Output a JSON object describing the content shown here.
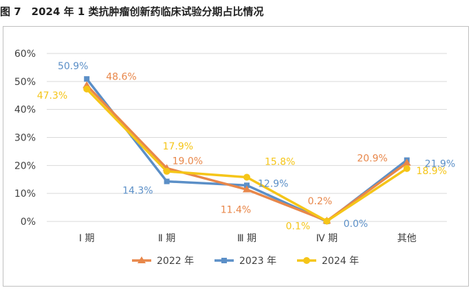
{
  "figure_title": "图 7　2024 年 1 类抗肿瘤创新药临床试验分期占比情况",
  "colors": {
    "2022": "#E8874A",
    "2023": "#5B8FC7",
    "2024": "#F5C518",
    "grid": "#d9d9d9",
    "axis_text": "#404040"
  },
  "chart_data": {
    "type": "line",
    "title": "",
    "xlabel": "",
    "ylabel": "",
    "categories": [
      "Ⅰ 期",
      "Ⅱ 期",
      "Ⅲ 期",
      "Ⅳ 期",
      "其他"
    ],
    "ylim": [
      0,
      60
    ],
    "y_ticks": [
      "0%",
      "10%",
      "20%",
      "30%",
      "40%",
      "50%",
      "60%"
    ],
    "grid": true,
    "legend_position": "bottom",
    "series": [
      {
        "name": "2022 年",
        "marker": "triangle",
        "values": [
          48.6,
          19.0,
          11.4,
          0.2,
          20.9
        ],
        "labels": [
          "48.6%",
          "19.0%",
          "11.4%",
          "0.2%",
          "20.9%"
        ]
      },
      {
        "name": "2023 年",
        "marker": "square",
        "values": [
          50.9,
          14.3,
          12.9,
          0.0,
          21.9
        ],
        "labels": [
          "50.9%",
          "14.3%",
          "12.9%",
          "0.0%",
          "21.9%"
        ]
      },
      {
        "name": "2024 年",
        "marker": "circle",
        "values": [
          47.3,
          17.9,
          15.8,
          0.1,
          18.9
        ],
        "labels": [
          "47.3%",
          "17.9%",
          "15.8%",
          "0.1%",
          "18.9%"
        ]
      }
    ]
  }
}
